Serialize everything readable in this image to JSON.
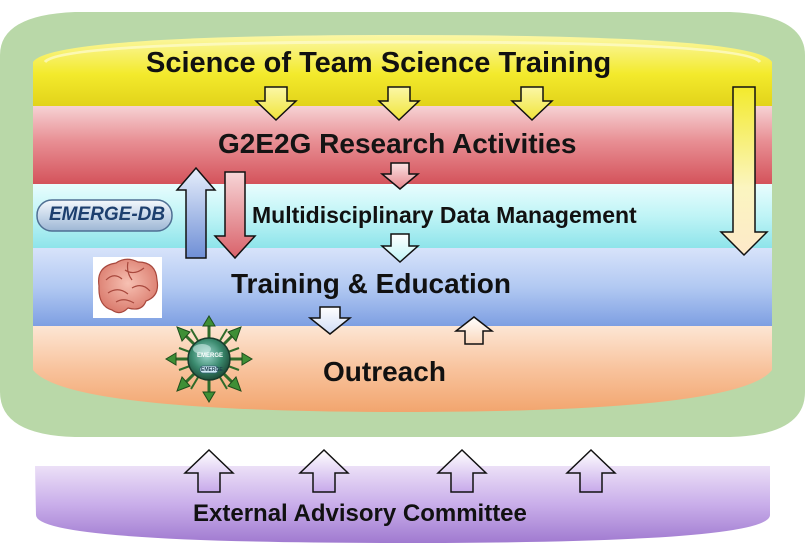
{
  "layers": {
    "sots": "Science of Team Science Training",
    "research": "G2E2G Research Activities",
    "data_mgmt": "Multidisciplinary Data Management",
    "training": "Training & Education",
    "outreach": "Outreach",
    "advisory": "External Advisory Committee"
  },
  "badges": {
    "emerge_db": "EMERGE-DB",
    "emerge_logo_top": "EMERGE",
    "emerge_logo_bottom": "EMERGE"
  },
  "icons": {
    "brain": "brain-icon",
    "emerge_db": "database-badge-icon",
    "emerge_logo": "emerge-logo-icon"
  },
  "colors": {
    "outer_green": "#b9d8a8",
    "sots_yellow": "#f3ea2c",
    "research_red": "#d9626a",
    "data_cyan": "#bff4f6",
    "training_blue": "#9fbbec",
    "outreach_orange": "#f8c39d",
    "advisory_purple": "#b28ad6"
  }
}
